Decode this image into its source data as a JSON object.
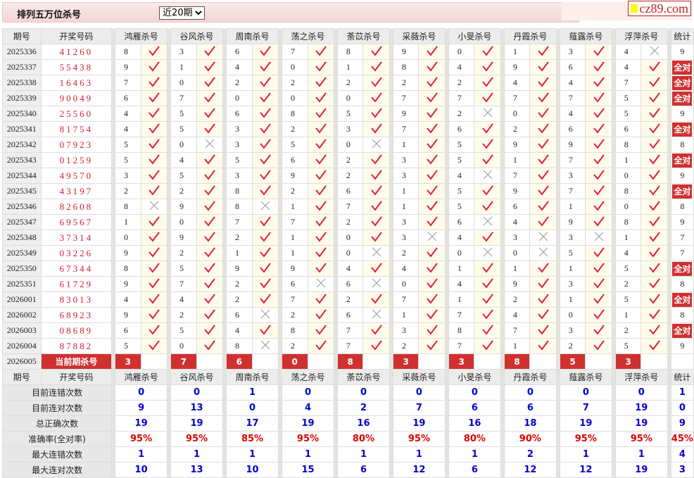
{
  "header": {
    "title": "排列五万位杀号",
    "period_select": "近20期",
    "logo": "cz89.com"
  },
  "columns": {
    "period": "期号",
    "draw": "开奖号码",
    "experts": [
      "鸿雁杀号",
      "谷风杀号",
      "周南杀号",
      "荡之杀号",
      "荼苡杀号",
      "采薇杀号",
      "小旻杀号",
      "丹霞杀号",
      "薤露杀号",
      "浮萍杀号"
    ],
    "stat": "统计"
  },
  "rows": [
    {
      "period": "2025336",
      "draw": "41260",
      "kills": [
        8,
        3,
        6,
        7,
        8,
        9,
        0,
        1,
        3,
        4
      ],
      "ok": [
        1,
        1,
        1,
        1,
        1,
        1,
        1,
        1,
        1,
        0
      ],
      "stat": "9"
    },
    {
      "period": "2025337",
      "draw": "55438",
      "kills": [
        9,
        1,
        4,
        0,
        1,
        8,
        4,
        9,
        6,
        4
      ],
      "ok": [
        1,
        1,
        1,
        1,
        1,
        1,
        1,
        1,
        1,
        1
      ],
      "stat": "全对"
    },
    {
      "period": "2025338",
      "draw": "16463",
      "kills": [
        7,
        0,
        2,
        2,
        2,
        2,
        2,
        4,
        4,
        7
      ],
      "ok": [
        1,
        1,
        1,
        1,
        1,
        1,
        1,
        1,
        1,
        1
      ],
      "stat": "全对"
    },
    {
      "period": "2025339",
      "draw": "90049",
      "kills": [
        6,
        7,
        0,
        0,
        0,
        7,
        7,
        7,
        7,
        5
      ],
      "ok": [
        1,
        1,
        1,
        1,
        1,
        1,
        1,
        1,
        1,
        1
      ],
      "stat": "全对"
    },
    {
      "period": "2025340",
      "draw": "25560",
      "kills": [
        4,
        5,
        6,
        8,
        5,
        9,
        2,
        0,
        4,
        5
      ],
      "ok": [
        1,
        1,
        1,
        1,
        1,
        1,
        0,
        1,
        1,
        1
      ],
      "stat": "9"
    },
    {
      "period": "2025341",
      "draw": "81754",
      "kills": [
        4,
        5,
        3,
        2,
        3,
        7,
        6,
        2,
        6,
        6
      ],
      "ok": [
        1,
        1,
        1,
        1,
        1,
        1,
        1,
        1,
        1,
        1
      ],
      "stat": "全对"
    },
    {
      "period": "2025342",
      "draw": "07923",
      "kills": [
        5,
        0,
        3,
        5,
        0,
        1,
        5,
        9,
        9,
        8
      ],
      "ok": [
        1,
        0,
        1,
        1,
        0,
        1,
        1,
        1,
        1,
        1
      ],
      "stat": "8"
    },
    {
      "period": "2025343",
      "draw": "01259",
      "kills": [
        5,
        4,
        5,
        6,
        2,
        3,
        5,
        1,
        7,
        1
      ],
      "ok": [
        1,
        1,
        1,
        1,
        1,
        1,
        1,
        1,
        1,
        1
      ],
      "stat": "全对"
    },
    {
      "period": "2025344",
      "draw": "49570",
      "kills": [
        3,
        5,
        3,
        9,
        2,
        3,
        4,
        7,
        3,
        0
      ],
      "ok": [
        1,
        1,
        1,
        1,
        1,
        1,
        0,
        1,
        1,
        1
      ],
      "stat": "9"
    },
    {
      "period": "2025345",
      "draw": "43197",
      "kills": [
        2,
        2,
        8,
        2,
        6,
        1,
        5,
        9,
        7,
        8
      ],
      "ok": [
        1,
        1,
        1,
        1,
        1,
        1,
        1,
        1,
        1,
        1
      ],
      "stat": "全对"
    },
    {
      "period": "2025346",
      "draw": "82608",
      "kills": [
        8,
        9,
        8,
        1,
        7,
        1,
        5,
        6,
        1,
        0
      ],
      "ok": [
        0,
        1,
        0,
        1,
        1,
        1,
        1,
        1,
        1,
        1
      ],
      "stat": "8"
    },
    {
      "period": "2025347",
      "draw": "69567",
      "kills": [
        1,
        0,
        7,
        7,
        2,
        3,
        6,
        4,
        9,
        8
      ],
      "ok": [
        1,
        1,
        1,
        1,
        1,
        1,
        0,
        1,
        1,
        1
      ],
      "stat": "9"
    },
    {
      "period": "2025348",
      "draw": "37314",
      "kills": [
        0,
        9,
        2,
        1,
        0,
        3,
        4,
        3,
        3,
        1
      ],
      "ok": [
        1,
        1,
        1,
        1,
        1,
        0,
        1,
        0,
        0,
        1
      ],
      "stat": "7"
    },
    {
      "period": "2025349",
      "draw": "03226",
      "kills": [
        9,
        2,
        1,
        1,
        0,
        2,
        0,
        0,
        5,
        4
      ],
      "ok": [
        1,
        1,
        1,
        1,
        0,
        1,
        0,
        0,
        1,
        1
      ],
      "stat": "7"
    },
    {
      "period": "2025350",
      "draw": "67344",
      "kills": [
        8,
        5,
        9,
        9,
        4,
        4,
        1,
        1,
        1,
        5
      ],
      "ok": [
        1,
        1,
        1,
        1,
        1,
        1,
        1,
        1,
        1,
        1
      ],
      "stat": "全对"
    },
    {
      "period": "2025351",
      "draw": "61729",
      "kills": [
        9,
        7,
        2,
        6,
        6,
        0,
        4,
        9,
        3,
        2
      ],
      "ok": [
        1,
        1,
        1,
        0,
        0,
        1,
        1,
        1,
        1,
        1
      ],
      "stat": "8"
    },
    {
      "period": "2026001",
      "draw": "83013",
      "kills": [
        4,
        4,
        2,
        7,
        2,
        7,
        1,
        2,
        1,
        5
      ],
      "ok": [
        1,
        1,
        1,
        1,
        1,
        1,
        1,
        1,
        1,
        1
      ],
      "stat": "全对"
    },
    {
      "period": "2026002",
      "draw": "68923",
      "kills": [
        9,
        2,
        6,
        2,
        6,
        1,
        7,
        4,
        0,
        1
      ],
      "ok": [
        1,
        1,
        0,
        1,
        0,
        1,
        1,
        1,
        1,
        1
      ],
      "stat": "8"
    },
    {
      "period": "2026003",
      "draw": "08689",
      "kills": [
        6,
        5,
        4,
        8,
        7,
        3,
        8,
        7,
        3,
        2
      ],
      "ok": [
        1,
        1,
        1,
        1,
        1,
        1,
        1,
        1,
        1,
        1
      ],
      "stat": "全对"
    },
    {
      "period": "2026004",
      "draw": "87882",
      "kills": [
        5,
        0,
        8,
        2,
        7,
        2,
        7,
        1,
        2,
        5
      ],
      "ok": [
        1,
        1,
        0,
        1,
        1,
        1,
        1,
        1,
        1,
        1
      ],
      "stat": "9"
    }
  ],
  "current": {
    "period": "2026005",
    "label": "当前期杀号",
    "kills": [
      3,
      7,
      6,
      0,
      8,
      3,
      3,
      8,
      5,
      3
    ]
  },
  "stats": [
    {
      "label": "目前连错次数",
      "values": [
        "0",
        "0",
        "1",
        "0",
        "0",
        "0",
        "0",
        "0",
        "0",
        "0",
        "1"
      ]
    },
    {
      "label": "目前连对次数",
      "values": [
        "9",
        "13",
        "0",
        "4",
        "2",
        "7",
        "6",
        "6",
        "7",
        "19",
        "0"
      ]
    },
    {
      "label": "总正确次数",
      "values": [
        "19",
        "19",
        "17",
        "19",
        "16",
        "19",
        "16",
        "18",
        "19",
        "19",
        "9"
      ]
    },
    {
      "label": "准确率(全对率)",
      "values": [
        "95%",
        "95%",
        "85%",
        "95%",
        "80%",
        "95%",
        "80%",
        "90%",
        "95%",
        "95%",
        "45%"
      ],
      "highlight": true
    },
    {
      "label": "最大连错次数",
      "values": [
        "1",
        "1",
        "1",
        "1",
        "1",
        "1",
        "1",
        "2",
        "1",
        "1",
        "4"
      ]
    },
    {
      "label": "最大连对次数",
      "values": [
        "10",
        "13",
        "10",
        "15",
        "6",
        "12",
        "6",
        "12",
        "12",
        "19",
        "3"
      ]
    }
  ],
  "colors": {
    "accent": "#d03030",
    "draw_number": "#d02030",
    "stat_value": "#0000cc",
    "check": "#e0203a"
  },
  "icons": {
    "ok": "check-icon",
    "bad": "cross-icon"
  }
}
